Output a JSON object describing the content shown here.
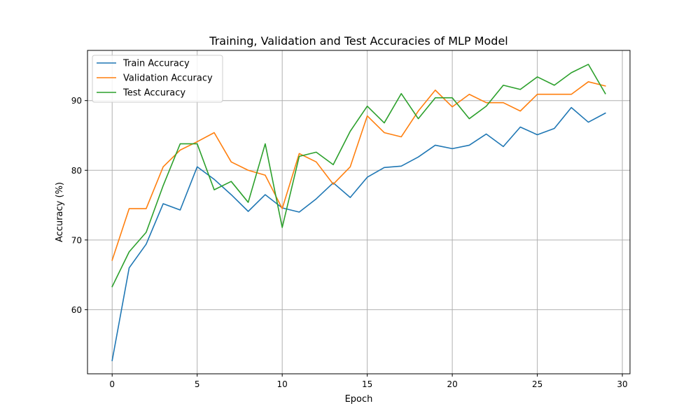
{
  "chart_data": {
    "type": "line",
    "title": "Training, Validation and Test Accuracies of MLP Model",
    "xlabel": "Epoch",
    "ylabel": "Accuracy (%)",
    "xlim": [
      -1.45,
      30.45
    ],
    "ylim": [
      50.8,
      97.2
    ],
    "xticks": [
      0,
      5,
      10,
      15,
      20,
      25,
      30
    ],
    "yticks": [
      60,
      70,
      80,
      90
    ],
    "grid": true,
    "legend_position": "top-left",
    "x": [
      0,
      1,
      2,
      3,
      4,
      5,
      6,
      7,
      8,
      9,
      10,
      11,
      12,
      13,
      14,
      15,
      16,
      17,
      18,
      19,
      20,
      21,
      22,
      23,
      24,
      25,
      26,
      27,
      28,
      29
    ],
    "series": [
      {
        "name": "Train Accuracy",
        "color": "#1f77b4",
        "values": [
          52.7,
          66.0,
          69.4,
          75.2,
          74.3,
          80.5,
          78.7,
          76.5,
          74.1,
          76.5,
          74.6,
          74.0,
          75.9,
          78.2,
          76.1,
          79.0,
          80.4,
          80.6,
          81.9,
          83.6,
          83.1,
          83.6,
          85.2,
          83.4,
          86.2,
          85.1,
          86.0,
          89.0,
          86.9,
          88.2
        ]
      },
      {
        "name": "Validation Accuracy",
        "color": "#ff7f0e",
        "values": [
          67.1,
          74.5,
          74.5,
          80.5,
          82.9,
          84.1,
          85.4,
          81.2,
          80.0,
          79.3,
          74.5,
          82.4,
          81.2,
          78.0,
          80.5,
          87.8,
          85.4,
          84.8,
          88.5,
          91.5,
          89.1,
          90.9,
          89.7,
          89.7,
          88.5,
          90.9,
          90.9,
          90.9,
          92.7,
          92.1
        ]
      },
      {
        "name": "Test Accuracy",
        "color": "#2ca02c",
        "values": [
          63.3,
          68.3,
          71.1,
          77.8,
          83.8,
          83.8,
          77.2,
          78.4,
          75.4,
          83.8,
          71.8,
          82.0,
          82.6,
          80.8,
          85.6,
          89.2,
          86.8,
          91.0,
          87.4,
          90.4,
          90.4,
          87.4,
          89.2,
          92.2,
          91.6,
          93.4,
          92.2,
          94.0,
          95.2,
          91.0
        ]
      }
    ]
  }
}
